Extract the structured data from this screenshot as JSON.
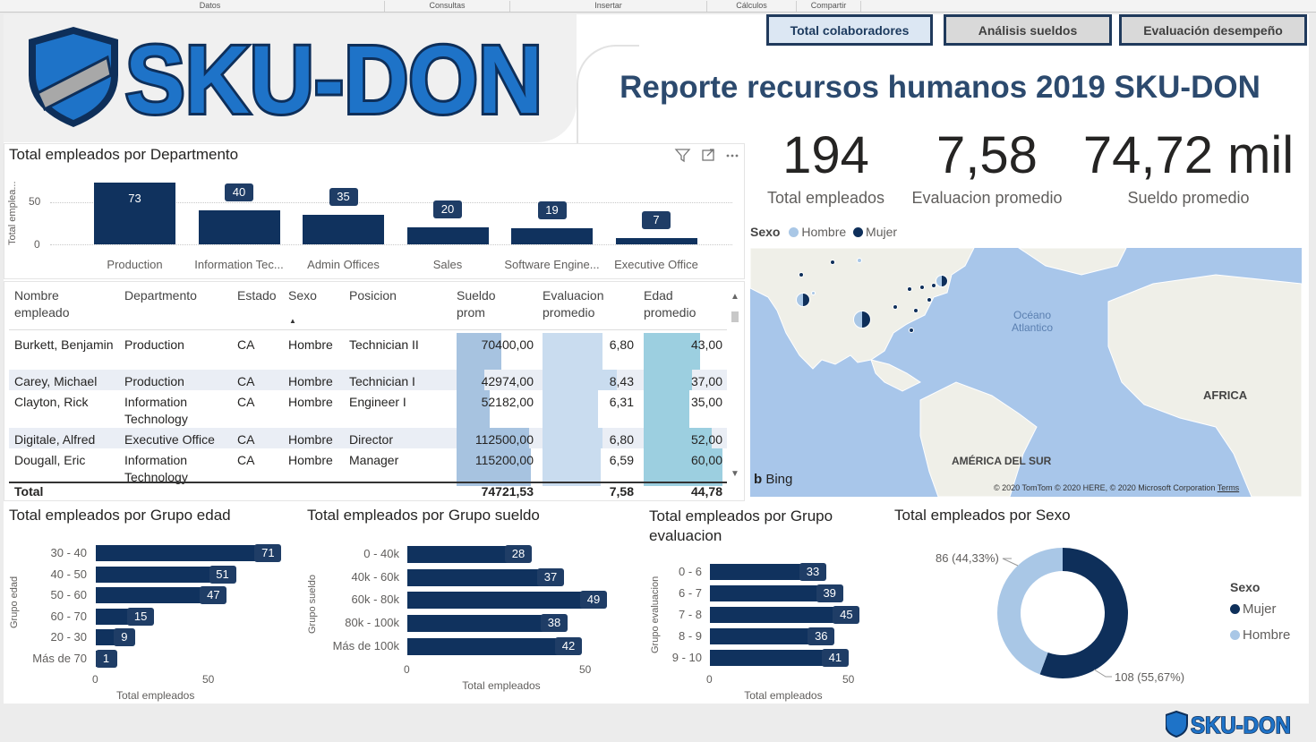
{
  "ribbon": [
    "Datos",
    "Consultas",
    "Insertar",
    "Cálculos",
    "Compartir"
  ],
  "brand": {
    "name": "SKU-DON",
    "dark": "#0e2f5a",
    "light": "#a9c7e6"
  },
  "tabs": [
    {
      "label": "Total colaboradores",
      "active": true
    },
    {
      "label": "Análisis sueldos",
      "active": false
    },
    {
      "label": "Evaluación desempeño",
      "active": false
    }
  ],
  "report_title": "Reporte recursos humanos 2019 SKU-DON",
  "kpis": [
    {
      "value": "194",
      "label": "Total empleados"
    },
    {
      "value": "7,58",
      "label": "Evaluacion promedio"
    },
    {
      "value": "74,72 mil",
      "label": "Sueldo promedio"
    }
  ],
  "visual_icons": [
    "filter-icon",
    "focus-mode-icon",
    "more-options-icon"
  ],
  "chart_data": [
    {
      "type": "bar",
      "title": "Total empleados por Departmento",
      "ylabel": "Total emplea...",
      "yticks": [
        "0",
        "50"
      ],
      "categories": [
        "Production",
        "Information Tec...",
        "Admin Offices",
        "Sales",
        "Software Engine...",
        "Executive Office"
      ],
      "values": [
        73,
        40,
        35,
        20,
        19,
        7
      ],
      "ylim": [
        0,
        73
      ]
    },
    {
      "type": "bar",
      "title": "Total empleados por Grupo edad",
      "ylabel": "Grupo edad",
      "xlabel": "Total empleados",
      "xticks": [
        "0",
        "50"
      ],
      "categories": [
        "30 - 40",
        "40 - 50",
        "50 - 60",
        "60 - 70",
        "20 - 30",
        "Más de 70"
      ],
      "values": [
        71,
        51,
        47,
        15,
        9,
        1
      ]
    },
    {
      "type": "bar",
      "title": "Total empleados por Grupo sueldo",
      "ylabel": "Grupo sueldo",
      "xlabel": "Total empleados",
      "xticks": [
        "0",
        "50"
      ],
      "categories": [
        "0 - 40k",
        "40k - 60k",
        "60k - 80k",
        "80k - 100k",
        "Más de 100k"
      ],
      "values": [
        28,
        37,
        49,
        38,
        42
      ]
    },
    {
      "type": "bar",
      "title": "Total empleados por Grupo evaluacion",
      "title_lines": [
        "Total empleados por Grupo",
        "evaluacion"
      ],
      "ylabel": "Grupo evaluacion",
      "xlabel": "Total empleados",
      "xticks": [
        "0",
        "50"
      ],
      "categories": [
        "0 - 6",
        "6 - 7",
        "7 - 8",
        "8 - 9",
        "9 - 10"
      ],
      "values": [
        33,
        39,
        45,
        36,
        41
      ]
    },
    {
      "type": "pie",
      "title": "Total empleados por Sexo",
      "legend_title": "Sexo",
      "series": [
        {
          "name": "Mujer",
          "value": 108,
          "label": "108 (55,67%)",
          "color": "#0e2f5a"
        },
        {
          "name": "Hombre",
          "value": 86,
          "label": "86 (44,33%)",
          "color": "#a9c7e6"
        }
      ]
    }
  ],
  "table": {
    "columns": [
      "Nombre empleado",
      "Departmento",
      "Estado",
      "Sexo",
      "Posicion",
      "Sueldo prom",
      "Evaluacion promedio",
      "Edad promedio"
    ],
    "rows": [
      {
        "name": "Burkett, Benjamin",
        "dept": "Production",
        "estado": "CA",
        "sexo": "Hombre",
        "pos": "Technician II",
        "sueldo": "70400,00",
        "eval": "6,80",
        "edad": "43,00",
        "s": 70400,
        "e": 6.8,
        "a": 43
      },
      {
        "name": "Carey, Michael",
        "dept": "Production",
        "estado": "CA",
        "sexo": "Hombre",
        "pos": "Technician I",
        "sueldo": "42974,00",
        "eval": "8,43",
        "edad": "37,00",
        "s": 42974,
        "e": 8.43,
        "a": 37
      },
      {
        "name": "Clayton, Rick",
        "dept": "Information Technology",
        "estado": "CA",
        "sexo": "Hombre",
        "pos": "Engineer I",
        "sueldo": "52182,00",
        "eval": "6,31",
        "edad": "35,00",
        "s": 52182,
        "e": 6.31,
        "a": 35
      },
      {
        "name": "Digitale, Alfred",
        "dept": "Executive Office",
        "estado": "CA",
        "sexo": "Hombre",
        "pos": "Director",
        "sueldo": "112500,00",
        "eval": "6,80",
        "edad": "52,00",
        "s": 112500,
        "e": 6.8,
        "a": 52
      },
      {
        "name": "Dougall, Eric",
        "dept": "Information Technology",
        "estado": "CA",
        "sexo": "Hombre",
        "pos": "Manager",
        "sueldo": "115200,00",
        "eval": "6,59",
        "edad": "60,00",
        "s": 115200,
        "e": 6.59,
        "a": 60
      }
    ],
    "total": {
      "label": "Total",
      "sueldo": "74721,53",
      "eval": "7,58",
      "edad": "44,78"
    }
  },
  "map": {
    "legend_title": "Sexo",
    "legend": [
      {
        "name": "Hombre",
        "color": "#a9c7e6"
      },
      {
        "name": "Mujer",
        "color": "#0e2f5a"
      }
    ],
    "labels": {
      "ocean": "Océano Atlantico",
      "africa": "AFRICA",
      "south_america": "AMÉRICA DEL SUR"
    },
    "bing": "Bing",
    "credits": "© 2020 TomTom © 2020 HERE, © 2020 Microsoft Corporation",
    "terms": "Terms"
  }
}
